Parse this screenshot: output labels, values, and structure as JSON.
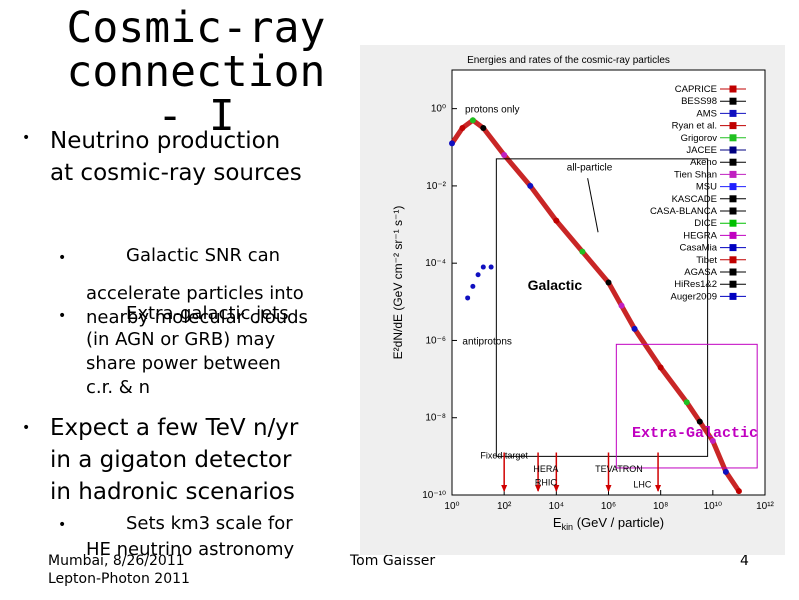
{
  "slide": {
    "title_line1": "Cosmic-ray",
    "title_line2": "connection - I",
    "bullets": {
      "b1": "Neutrino production",
      "b1b": "at cosmic-ray sources",
      "s1": "Galactic SNR can",
      "s1a": "accelerate particles into",
      "s1b": "nearby molecular clouds",
      "s2": "Extra-galactic jets",
      "s2a": "(in AGN or GRB) may",
      "s2b": "share power between",
      "s2c": "c.r. & n",
      "b2": "Expect a few TeV n/yr",
      "b2a": "in a gigaton detector",
      "b2b": "in hadronic scenarios",
      "s3": "Sets km3 scale for",
      "s3b": "HE neutrino astronomy"
    },
    "footer": {
      "left1": "Mumbai, 8/26/2011",
      "left2": "Lepton-Photon 2011",
      "center": "Tom Gaisser",
      "page": "4"
    }
  },
  "chart_data": {
    "type": "scatter",
    "title": "Energies and rates of the cosmic-ray particles",
    "xlabel_main": "E",
    "xlabel_sub": "kin",
    "xlabel_rest": " (GeV / particle)",
    "ylabel": "E²dN/dE  (GeV cm⁻² sr⁻¹ s⁻¹)",
    "x_log_range": [
      0,
      12
    ],
    "y_log_range": [
      -10,
      1
    ],
    "x_ticks": [
      "10⁰",
      "10²",
      "10⁴",
      "10⁶",
      "10⁸",
      "10¹⁰",
      "10¹²"
    ],
    "y_ticks": [
      "10⁰",
      "10⁻²",
      "10⁻⁴",
      "10⁻⁶",
      "10⁻⁸",
      "10⁻¹⁰"
    ],
    "legend": [
      "CAPRICE",
      "BESS98",
      "AMS",
      "Ryan et al.",
      "Grigorov",
      "JACEE",
      "Akeno",
      "Tien Shan",
      "MSU",
      "KASCADE",
      "CASA-BLANCA",
      "DICE",
      "HEGRA",
      "CasaMia",
      "Tibet",
      "AGASA",
      "HiRes1&2",
      "Auger2009"
    ],
    "legend_colors": [
      "#c00000",
      "#000000",
      "#1010c0",
      "#c00000",
      "#20c020",
      "#000080",
      "#000000",
      "#c020c0",
      "#2020ff",
      "#000000",
      "#000000",
      "#00c000",
      "#c000c0",
      "#0000c0",
      "#c00000",
      "#000000",
      "#000000",
      "#0000c0"
    ],
    "annotations": {
      "protons": "protons only",
      "allparticle": "all-particle",
      "antiprotons": "antiprotons",
      "fixed": "Fixed target",
      "hera": "HERA",
      "rhic": "RHIC",
      "tevatron": "TEVATRON",
      "lhc": "LHC",
      "galactic": "Galactic",
      "extragalactic": "Extra-Galactic"
    },
    "colliders_log10_energy": [
      2,
      3.3,
      4,
      6,
      7.9
    ],
    "spectrum_log": [
      [
        0,
        -0.9
      ],
      [
        0.4,
        -0.5
      ],
      [
        0.8,
        -0.3
      ],
      [
        1.2,
        -0.5
      ],
      [
        2,
        -1.2
      ],
      [
        3,
        -2
      ],
      [
        4,
        -2.9
      ],
      [
        5,
        -3.7
      ],
      [
        6,
        -4.5
      ],
      [
        6.5,
        -5.1
      ],
      [
        7,
        -5.7
      ],
      [
        8,
        -6.7
      ],
      [
        9,
        -7.6
      ],
      [
        9.5,
        -8.1
      ],
      [
        10,
        -8.6
      ],
      [
        10.5,
        -9.4
      ],
      [
        11,
        -9.9
      ]
    ],
    "antiproton_log": [
      [
        0.6,
        -4.9
      ],
      [
        0.8,
        -4.6
      ],
      [
        1,
        -4.3
      ],
      [
        1.2,
        -4.1
      ],
      [
        1.5,
        -4.1
      ]
    ]
  }
}
